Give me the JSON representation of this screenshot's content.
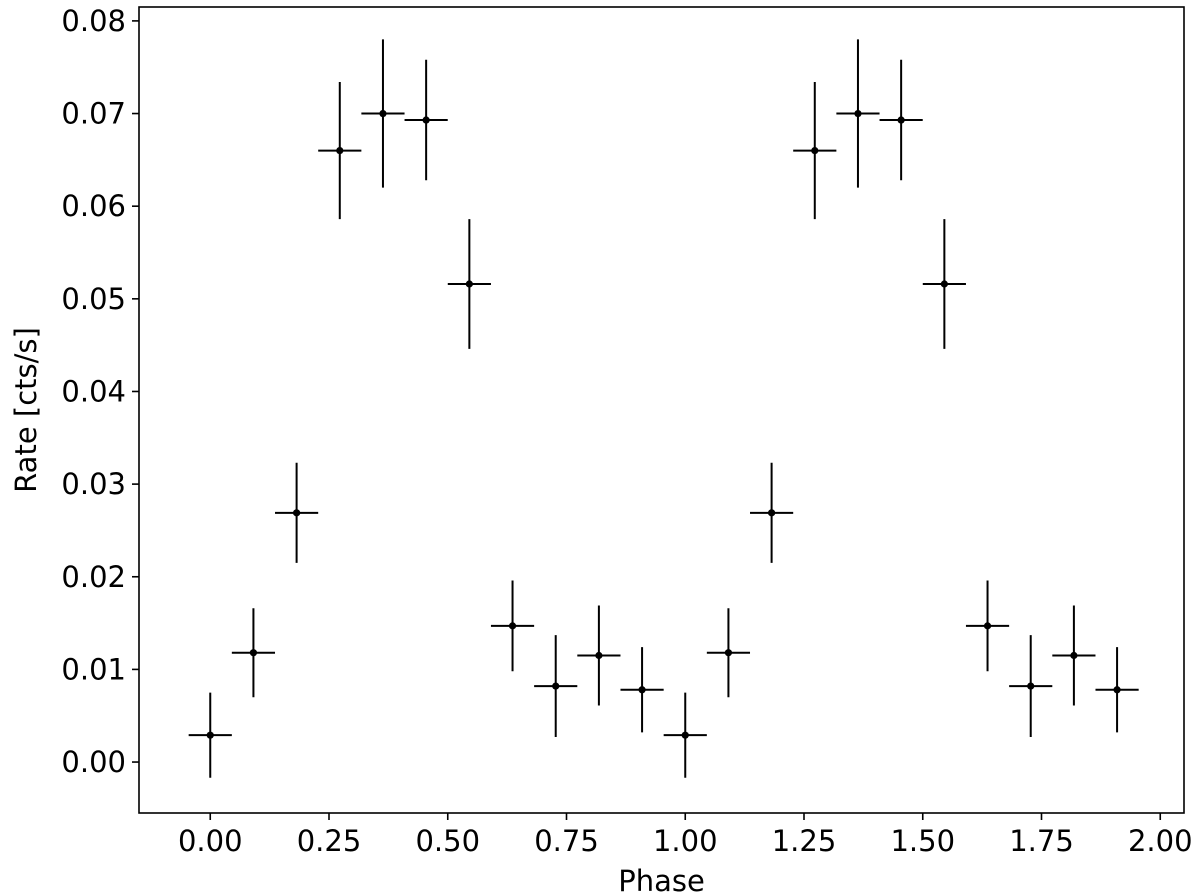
{
  "chart_data": {
    "type": "scatter",
    "title": "",
    "xlabel": "Phase",
    "ylabel": "Rate [cts/s]",
    "xlim": [
      -0.15,
      2.05
    ],
    "ylim": [
      -0.0055,
      0.0815
    ],
    "grid": false,
    "x_ticks": [
      "0.00",
      "0.25",
      "0.50",
      "0.75",
      "1.00",
      "1.25",
      "1.50",
      "1.75",
      "2.00"
    ],
    "y_ticks": [
      "0.00",
      "0.01",
      "0.02",
      "0.03",
      "0.04",
      "0.05",
      "0.06",
      "0.07",
      "0.08"
    ],
    "x_bin_half_width": 0.04545,
    "series": [
      {
        "marker": "dot",
        "color": "#000000",
        "x": [
          0.0,
          0.0909,
          0.1818,
          0.2727,
          0.3636,
          0.4545,
          0.5455,
          0.6364,
          0.7273,
          0.8182,
          0.9091,
          1.0,
          1.0909,
          1.1818,
          1.2727,
          1.3636,
          1.4545,
          1.5455,
          1.6364,
          1.7273,
          1.8182,
          1.9091
        ],
        "y": [
          0.0029,
          0.0118,
          0.0269,
          0.066,
          0.07,
          0.0693,
          0.0516,
          0.0147,
          0.0082,
          0.0115,
          0.0078,
          0.0029,
          0.0118,
          0.0269,
          0.066,
          0.07,
          0.0693,
          0.0516,
          0.0147,
          0.0082,
          0.0115,
          0.0078
        ],
        "y_err": [
          0.0046,
          0.0048,
          0.0054,
          0.0074,
          0.008,
          0.0065,
          0.007,
          0.0049,
          0.0055,
          0.0054,
          0.0046,
          0.0046,
          0.0048,
          0.0054,
          0.0074,
          0.008,
          0.0065,
          0.007,
          0.0049,
          0.0055,
          0.0054,
          0.0046
        ]
      }
    ]
  }
}
